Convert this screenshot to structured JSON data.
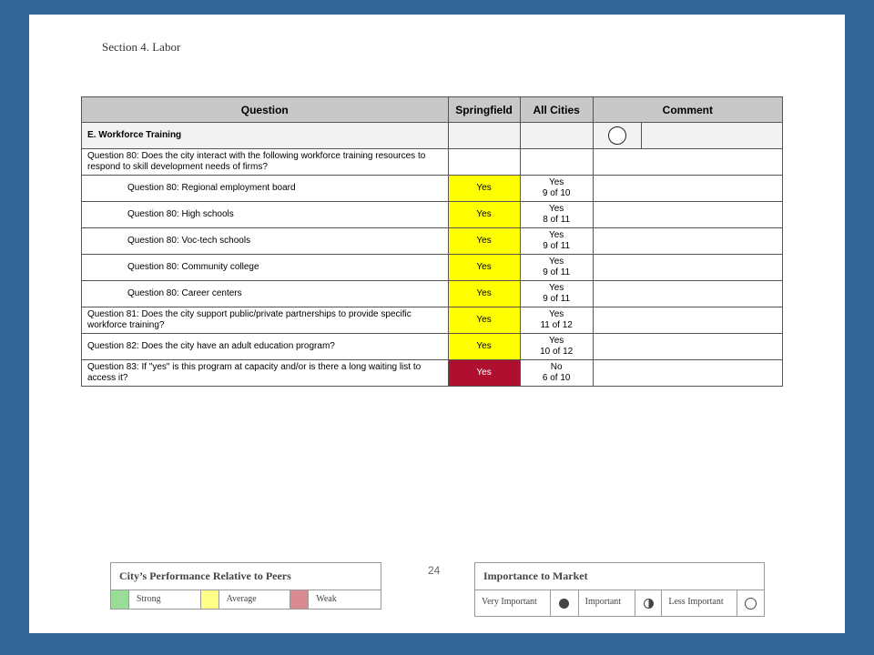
{
  "section_title": "Section 4. Labor",
  "table": {
    "headers": {
      "question": "Question",
      "city": "Springfield",
      "all": "All Cities",
      "comment": "Comment"
    },
    "rows": [
      {
        "question": "E. Workforce Training",
        "city": "",
        "all": "",
        "comment": "",
        "kind": "section",
        "importance_icon": "circle-empty-icon"
      },
      {
        "question": "Question 80: Does the city interact with the following workforce training resources to respond to skill development needs of firms?",
        "city": "",
        "all": "",
        "comment": ""
      },
      {
        "question": "Question 80: Regional employment board",
        "city": "Yes",
        "all": "Yes\n9 of 10",
        "comment": "",
        "performance": "average"
      },
      {
        "question": "Question 80: High schools",
        "city": "Yes",
        "all": "Yes\n8 of 11",
        "comment": "",
        "performance": "average"
      },
      {
        "question": "Question 80: Voc-tech schools",
        "city": "Yes",
        "all": "Yes\n9 of 11",
        "comment": "",
        "performance": "average"
      },
      {
        "question": "Question 80: Community college",
        "city": "Yes",
        "all": "Yes\n9 of 11",
        "comment": "",
        "performance": "average"
      },
      {
        "question": "Question 80: Career centers",
        "city": "Yes",
        "all": "Yes\n9 of 11",
        "comment": "",
        "performance": "average"
      },
      {
        "question": "Question 81: Does the city support public/private partnerships to provide specific workforce training?",
        "city": "Yes",
        "all": "Yes\n11 of 12",
        "comment": "",
        "performance": "average"
      },
      {
        "question": "Question 82: Does the city have an adult education program?",
        "city": "Yes",
        "all": "Yes\n10 of 12",
        "comment": "",
        "performance": "average"
      },
      {
        "question": "Question 83: If \"yes\" is this program at capacity and/or is there a long waiting list to access it?",
        "city": "Yes",
        "all": "No\n6 of 10",
        "comment": "",
        "performance": "weak"
      }
    ]
  },
  "page_number": "24",
  "legend_performance": {
    "title": "City’s Performance Relative to Peers",
    "items": [
      {
        "label": "Strong",
        "color": "#99dd99"
      },
      {
        "label": "Average",
        "color": "#ffff88"
      },
      {
        "label": "Weak",
        "color": "#d98a90"
      }
    ]
  },
  "legend_importance": {
    "title": "Importance to Market",
    "items": [
      {
        "label": "Very Important",
        "icon": "circle-full-icon"
      },
      {
        "label": "Important",
        "icon": "circle-half-icon"
      },
      {
        "label": "Less Important",
        "icon": "circle-empty-icon"
      }
    ]
  },
  "colors": {
    "frame": "#336699",
    "average": "#ffff00",
    "weak": "#b01030",
    "header": "#c8c8c8"
  }
}
